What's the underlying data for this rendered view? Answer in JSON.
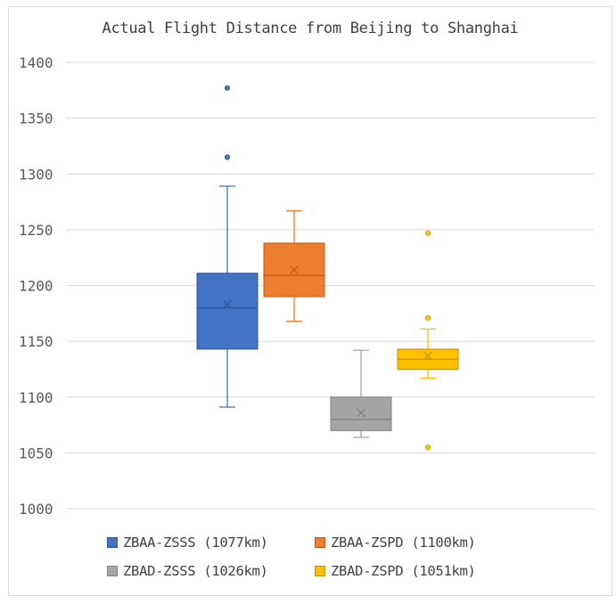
{
  "chart_data": {
    "type": "box",
    "title": "Actual Flight Distance from Beijing to Shanghai",
    "xlabel": "",
    "ylabel": "",
    "ylim": [
      1000,
      1400
    ],
    "yticks": [
      1000,
      1050,
      1100,
      1150,
      1200,
      1250,
      1300,
      1350,
      1400
    ],
    "grid": "horizontal",
    "legend_position": "bottom",
    "series": [
      {
        "name": "ZBAA-ZSSS (1077km)",
        "color": "#4472c4",
        "min": 1091,
        "q1": 1143,
        "median": 1180,
        "q3": 1211,
        "max": 1289,
        "mean": 1183,
        "outliers": [
          1315,
          1377
        ]
      },
      {
        "name": "ZBAA-ZSPD (1100km)",
        "color": "#ed7d31",
        "min": 1168,
        "q1": 1190,
        "median": 1209,
        "q3": 1238,
        "max": 1267,
        "mean": 1214,
        "outliers": []
      },
      {
        "name": "ZBAD-ZSSS (1026km)",
        "color": "#a5a5a5",
        "min": 1064,
        "q1": 1070,
        "median": 1080,
        "q3": 1100,
        "max": 1142,
        "mean": 1086,
        "outliers": []
      },
      {
        "name": "ZBAD-ZSPD (1051km)",
        "color": "#ffc000",
        "min": 1117,
        "q1": 1125,
        "median": 1134,
        "q3": 1143,
        "max": 1161,
        "mean": 1137,
        "outliers": [
          1055,
          1171,
          1247
        ]
      }
    ]
  }
}
